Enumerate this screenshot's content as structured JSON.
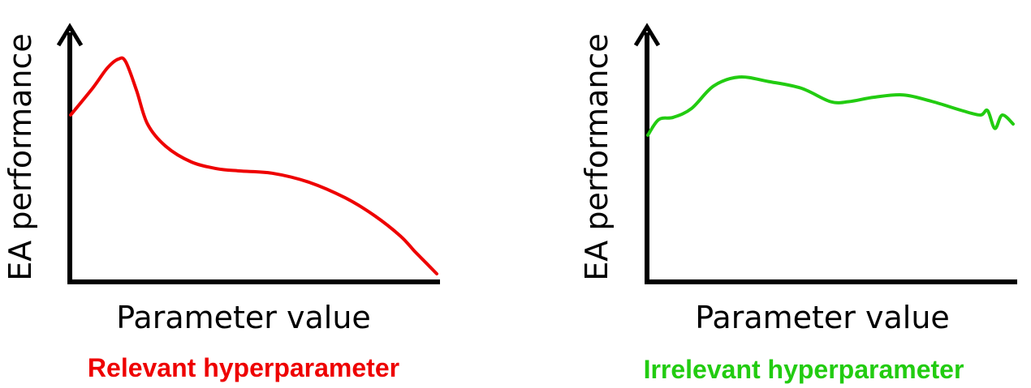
{
  "colors": {
    "axis": "#000000",
    "relevant": "#ee0000",
    "irrelevant": "#22cc11"
  },
  "chart_data": [
    {
      "type": "line",
      "title": "",
      "xlabel": "Parameter value",
      "ylabel": "EA performance",
      "caption": "Relevant hyperparameter",
      "color": "#ee0000",
      "xlim": [
        0,
        1
      ],
      "ylim": [
        0,
        1
      ],
      "ticks": "none",
      "grid": false,
      "series": [
        {
          "x": [
            0.0,
            0.06,
            0.1,
            0.13,
            0.15,
            0.18,
            0.21,
            0.26,
            0.33,
            0.4,
            0.46,
            0.55,
            0.65,
            0.75,
            0.83,
            0.9,
            0.94,
            0.97,
            1.0
          ],
          "y": [
            0.71,
            0.83,
            0.92,
            0.96,
            0.95,
            0.82,
            0.67,
            0.57,
            0.5,
            0.47,
            0.46,
            0.45,
            0.41,
            0.34,
            0.26,
            0.17,
            0.1,
            0.05,
            0.0
          ]
        }
      ]
    },
    {
      "type": "line",
      "title": "",
      "xlabel": "Parameter value",
      "ylabel": "EA performance",
      "caption": "Irrelevant hyperparameter",
      "color": "#22cc11",
      "xlim": [
        0,
        1
      ],
      "ylim": [
        0,
        1
      ],
      "ticks": "none",
      "grid": false,
      "series": [
        {
          "x": [
            0.0,
            0.03,
            0.07,
            0.12,
            0.18,
            0.25,
            0.33,
            0.42,
            0.5,
            0.55,
            0.62,
            0.7,
            0.78,
            0.86,
            0.91,
            0.93,
            0.95,
            0.97,
            1.0
          ],
          "y": [
            0.62,
            0.69,
            0.7,
            0.74,
            0.84,
            0.88,
            0.86,
            0.83,
            0.77,
            0.77,
            0.79,
            0.8,
            0.77,
            0.73,
            0.71,
            0.73,
            0.65,
            0.71,
            0.67
          ]
        }
      ]
    }
  ]
}
